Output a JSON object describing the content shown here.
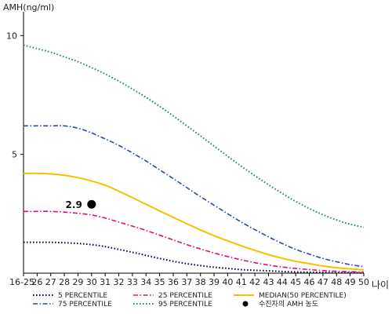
{
  "chart_data": {
    "type": "line",
    "ylabel": "AMH(ng/ml)",
    "xlabel": "나이",
    "ylim": [
      0,
      11
    ],
    "xlim": [
      25,
      50
    ],
    "y_ticks": [
      5,
      10
    ],
    "x_ticks": [
      {
        "value": 25,
        "label": "16-25"
      },
      {
        "value": 26,
        "label": "26"
      },
      {
        "value": 27,
        "label": "27"
      },
      {
        "value": 28,
        "label": "28"
      },
      {
        "value": 29,
        "label": "29"
      },
      {
        "value": 30,
        "label": "30"
      },
      {
        "value": 31,
        "label": "31"
      },
      {
        "value": 32,
        "label": "32"
      },
      {
        "value": 33,
        "label": "33"
      },
      {
        "value": 34,
        "label": "34"
      },
      {
        "value": 35,
        "label": "35"
      },
      {
        "value": 36,
        "label": "36"
      },
      {
        "value": 37,
        "label": "37"
      },
      {
        "value": 38,
        "label": "38"
      },
      {
        "value": 39,
        "label": "39"
      },
      {
        "value": 40,
        "label": "40"
      },
      {
        "value": 41,
        "label": "41"
      },
      {
        "value": 42,
        "label": "42"
      },
      {
        "value": 43,
        "label": "43"
      },
      {
        "value": 44,
        "label": "44"
      },
      {
        "value": 45,
        "label": "45"
      },
      {
        "value": 46,
        "label": "46"
      },
      {
        "value": 47,
        "label": "47"
      },
      {
        "value": 48,
        "label": "48"
      },
      {
        "value": 49,
        "label": "49"
      },
      {
        "value": 50,
        "label": "50"
      }
    ],
    "grid": false,
    "legend_position": "bottom",
    "x": [
      25,
      26,
      27,
      28,
      29,
      30,
      31,
      32,
      33,
      34,
      35,
      36,
      37,
      38,
      39,
      40,
      41,
      42,
      43,
      44,
      45,
      46,
      47,
      48,
      49,
      50
    ],
    "series": [
      {
        "name": "5 PERCENTILE",
        "color": "#0a0a50",
        "dash": "dot",
        "values": [
          1.3,
          1.3,
          1.3,
          1.28,
          1.25,
          1.2,
          1.12,
          1.0,
          0.88,
          0.75,
          0.62,
          0.5,
          0.4,
          0.32,
          0.25,
          0.2,
          0.15,
          0.12,
          0.1,
          0.07,
          0.05,
          0.04,
          0.03,
          0.02,
          0.02,
          0.01
        ]
      },
      {
        "name": "25 PERCENTILE",
        "color": "#e0107a",
        "dash": "dashdot",
        "values": [
          2.6,
          2.6,
          2.6,
          2.57,
          2.52,
          2.45,
          2.32,
          2.15,
          1.98,
          1.8,
          1.6,
          1.4,
          1.2,
          1.02,
          0.85,
          0.7,
          0.56,
          0.44,
          0.34,
          0.26,
          0.2,
          0.15,
          0.11,
          0.08,
          0.06,
          0.05
        ]
      },
      {
        "name": "MEDIAN(50 PERCENTILE)",
        "color": "#f2c200",
        "dash": "solid",
        "values": [
          4.2,
          4.2,
          4.18,
          4.12,
          4.02,
          3.88,
          3.7,
          3.45,
          3.18,
          2.9,
          2.62,
          2.35,
          2.08,
          1.82,
          1.58,
          1.36,
          1.15,
          0.96,
          0.78,
          0.63,
          0.5,
          0.4,
          0.3,
          0.23,
          0.18,
          0.14
        ]
      },
      {
        "name": "75 PERCENTILE",
        "color": "#2a48b8",
        "dash": "dashdot",
        "values": [
          6.2,
          6.2,
          6.2,
          6.2,
          6.1,
          5.9,
          5.65,
          5.38,
          5.06,
          4.72,
          4.35,
          3.98,
          3.6,
          3.22,
          2.86,
          2.5,
          2.15,
          1.83,
          1.53,
          1.25,
          1.0,
          0.8,
          0.62,
          0.48,
          0.36,
          0.27
        ]
      },
      {
        "name": "95 PERCENTILE",
        "color": "#2e8b57",
        "dash": "dot",
        "values": [
          9.6,
          9.45,
          9.3,
          9.1,
          8.9,
          8.65,
          8.38,
          8.08,
          7.75,
          7.4,
          7.02,
          6.62,
          6.2,
          5.78,
          5.35,
          4.92,
          4.5,
          4.1,
          3.72,
          3.36,
          3.02,
          2.72,
          2.46,
          2.24,
          2.06,
          1.93
        ]
      }
    ],
    "annotations": [
      {
        "name": "수진자의 AMH 농도",
        "x": 30,
        "y": 2.9,
        "label": "2.9",
        "color": "#000000"
      }
    ]
  }
}
